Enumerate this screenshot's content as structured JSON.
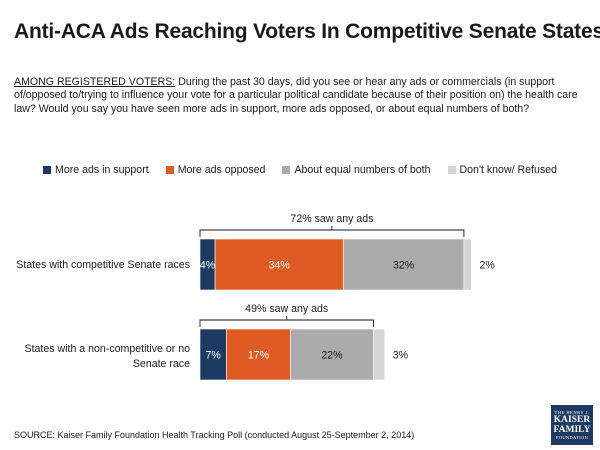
{
  "title": "Anti-ACA Ads Reaching Voters In Competitive Senate States",
  "question": {
    "lead": "AMONG REGISTERED VOTERS:",
    "text": " During the past 30 days, did you see or hear any ads or commercials (in support of/opposed to/trying to influence your vote for a particular political candidate because of their position on) the health care law? Would you say you have seen more ads in support, more ads opposed, or about equal numbers of both?"
  },
  "colors": {
    "support": "#1d3a62",
    "opposed": "#e05a24",
    "equal": "#ababab",
    "dontknow": "#d5d5d5"
  },
  "chart_data": {
    "type": "bar",
    "orientation": "horizontal",
    "stacked": true,
    "legend_position": "top",
    "categories": [
      "States with competitive Senate races",
      "States with a non-competitive or no Senate race"
    ],
    "series": [
      {
        "name": "More ads in support",
        "key": "support",
        "values": [
          4,
          7
        ],
        "labels": [
          "4%",
          "7%"
        ]
      },
      {
        "name": "More ads opposed",
        "key": "opposed",
        "values": [
          34,
          17
        ],
        "labels": [
          "34%",
          "17%"
        ]
      },
      {
        "name": "About equal numbers of both",
        "key": "equal",
        "values": [
          32,
          22
        ],
        "labels": [
          "32%",
          "22%"
        ]
      },
      {
        "name": "Don't know/ Refused",
        "key": "dontknow",
        "values": [
          2,
          3
        ],
        "labels": [
          "2%",
          "3%"
        ]
      }
    ],
    "annotations": [
      "72% saw any ads",
      "49% saw any ads"
    ]
  },
  "source": "SOURCE: Kaiser Family Foundation Health Tracking Poll (conducted August 25-September 2, 2014)",
  "logo": {
    "line1": "THE HENRY J.",
    "line2": "KAISER",
    "line3": "FAMILY",
    "line4": "FOUNDATION"
  }
}
